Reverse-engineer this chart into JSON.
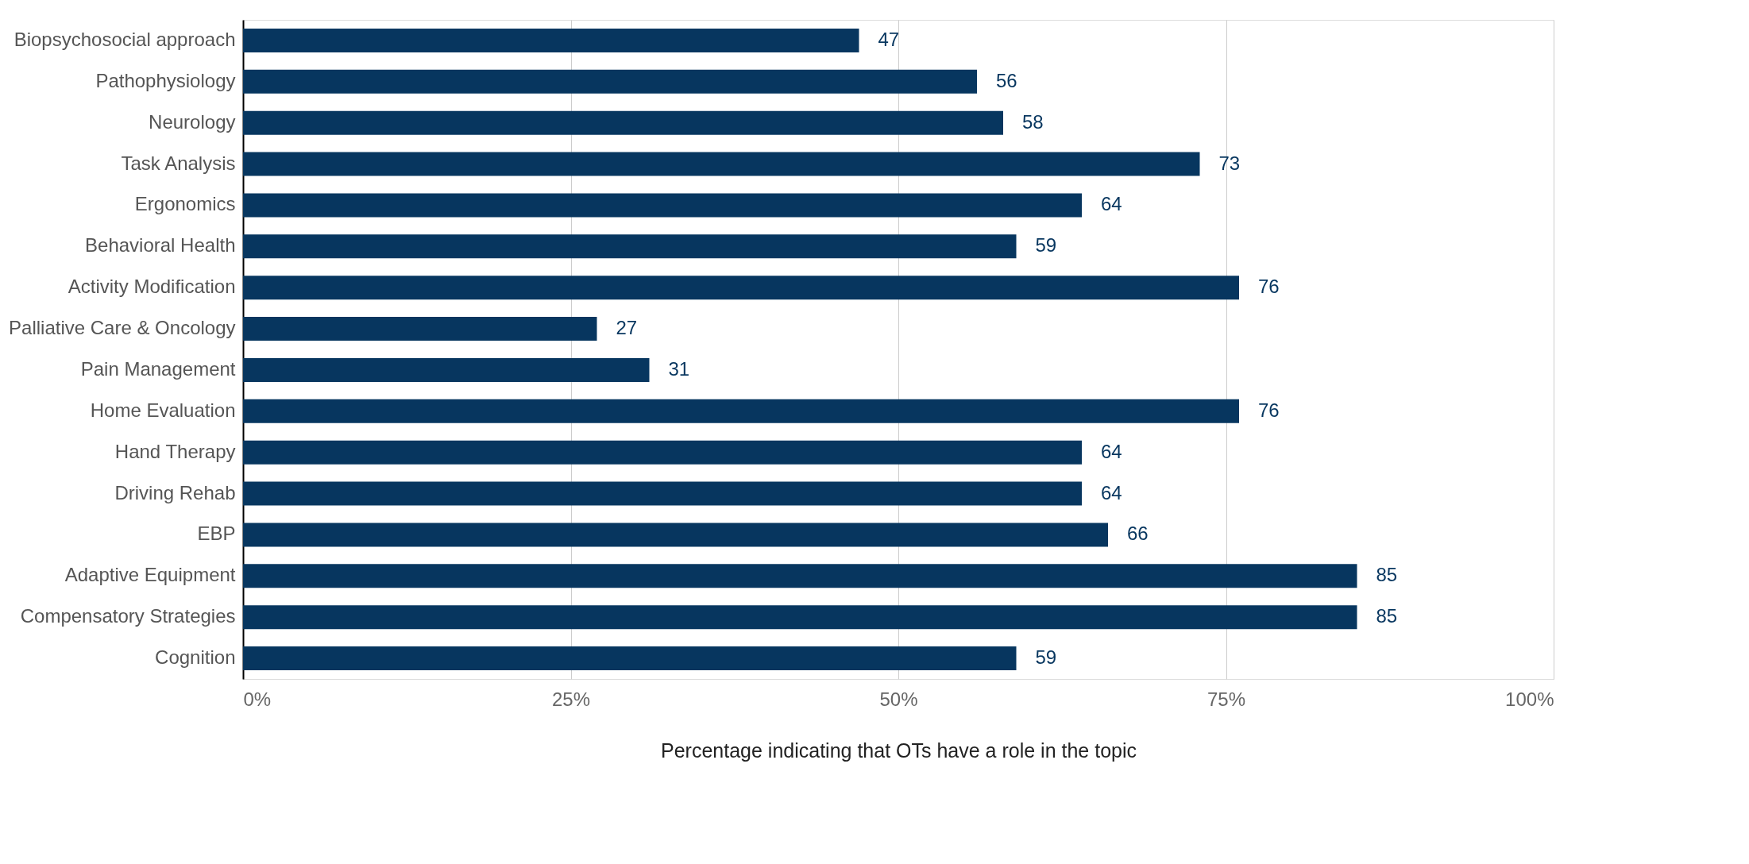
{
  "chart_data": {
    "type": "bar",
    "orientation": "horizontal",
    "xlabel": "Percentage indicating that OTs have a role in the topic",
    "categories": [
      "Biopsychosocial approach",
      "Pathophysiology",
      "Neurology",
      "Task Analysis",
      "Ergonomics",
      "Behavioral Health",
      "Activity Modification",
      "Palliative Care & Oncology",
      "Pain Management",
      "Home Evaluation",
      "Hand Therapy",
      "Driving Rehab",
      "EBP",
      "Adaptive Equipment",
      "Compensatory Strategies",
      "Cognition"
    ],
    "values": [
      47,
      56,
      58,
      73,
      64,
      59,
      76,
      27,
      31,
      76,
      64,
      64,
      66,
      85,
      85,
      59
    ],
    "color": "#07365f",
    "xlim": [
      0,
      100
    ],
    "xticks": [
      {
        "value": 0,
        "label": "0%"
      },
      {
        "value": 25,
        "label": "25%"
      },
      {
        "value": 50,
        "label": "50%"
      },
      {
        "value": 75,
        "label": "75%"
      },
      {
        "value": 100,
        "label": "100%"
      }
    ],
    "grid": "x",
    "data_labels": true
  }
}
